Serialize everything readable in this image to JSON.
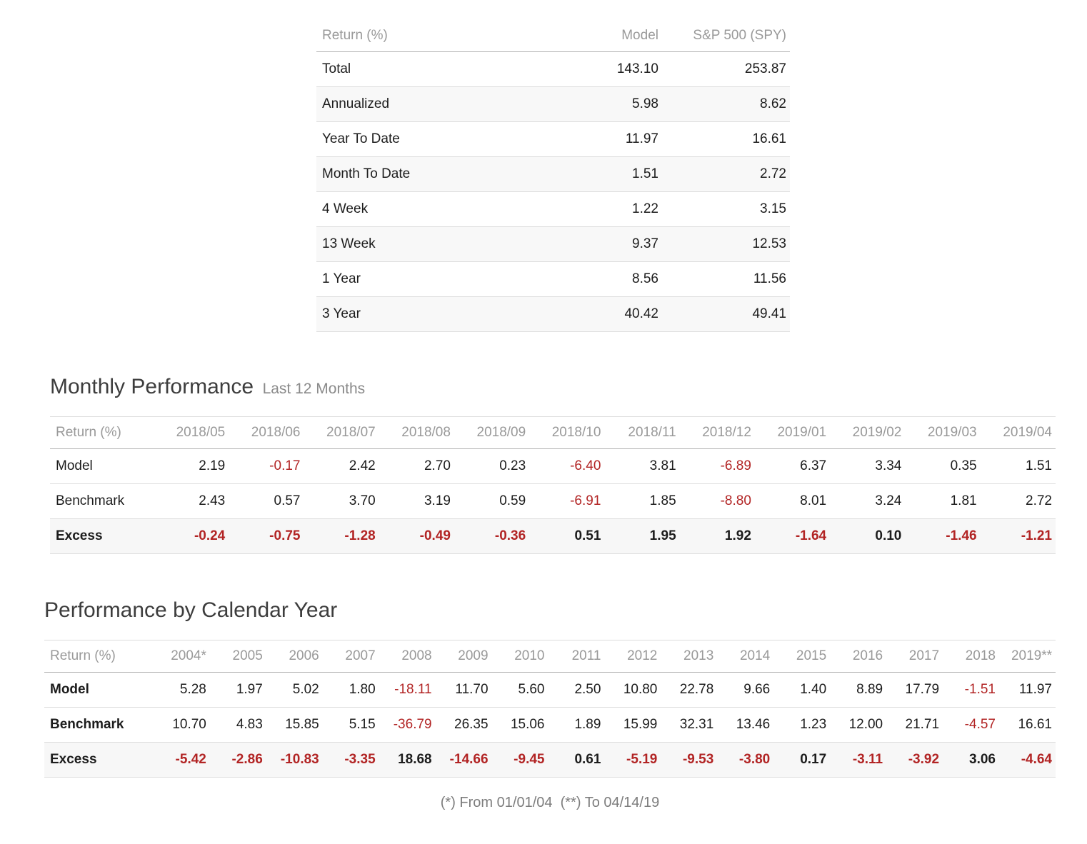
{
  "chart_data": [
    {
      "type": "table",
      "name": "summary_returns",
      "header_label": "Return (%)",
      "columns": [
        "Model",
        "S&P 500 (SPY)"
      ],
      "rows": [
        {
          "label": "Total",
          "values": [
            "143.10",
            "253.87"
          ]
        },
        {
          "label": "Annualized",
          "values": [
            "5.98",
            "8.62"
          ]
        },
        {
          "label": "Year To Date",
          "values": [
            "11.97",
            "16.61"
          ]
        },
        {
          "label": "Month To Date",
          "values": [
            "1.51",
            "2.72"
          ]
        },
        {
          "label": "4 Week",
          "values": [
            "1.22",
            "3.15"
          ]
        },
        {
          "label": "13 Week",
          "values": [
            "9.37",
            "12.53"
          ]
        },
        {
          "label": "1 Year",
          "values": [
            "8.56",
            "11.56"
          ]
        },
        {
          "label": "3 Year",
          "values": [
            "40.42",
            "49.41"
          ]
        }
      ]
    },
    {
      "type": "table",
      "name": "monthly_performance",
      "title": "Monthly Performance",
      "subtitle": "Last 12 Months",
      "header_label": "Return (%)",
      "columns": [
        "2018/05",
        "2018/06",
        "2018/07",
        "2018/08",
        "2018/09",
        "2018/10",
        "2018/11",
        "2018/12",
        "2019/01",
        "2019/02",
        "2019/03",
        "2019/04"
      ],
      "rows": [
        {
          "label": "Model",
          "values": [
            "2.19",
            "-0.17",
            "2.42",
            "2.70",
            "0.23",
            "-6.40",
            "3.81",
            "-6.89",
            "6.37",
            "3.34",
            "0.35",
            "1.51"
          ]
        },
        {
          "label": "Benchmark",
          "values": [
            "2.43",
            "0.57",
            "3.70",
            "3.19",
            "0.59",
            "-6.91",
            "1.85",
            "-8.80",
            "8.01",
            "3.24",
            "1.81",
            "2.72"
          ]
        },
        {
          "label": "Excess",
          "values": [
            "-0.24",
            "-0.75",
            "-1.28",
            "-0.49",
            "-0.36",
            "0.51",
            "1.95",
            "1.92",
            "-1.64",
            "0.10",
            "-1.46",
            "-1.21"
          ],
          "emphasis": true
        }
      ]
    },
    {
      "type": "table",
      "name": "calendar_year_performance",
      "title": "Performance by Calendar Year",
      "header_label": "Return (%)",
      "columns": [
        "2004*",
        "2005",
        "2006",
        "2007",
        "2008",
        "2009",
        "2010",
        "2011",
        "2012",
        "2013",
        "2014",
        "2015",
        "2016",
        "2017",
        "2018",
        "2019**"
      ],
      "rows": [
        {
          "label": "Model",
          "label_bold": true,
          "values": [
            "5.28",
            "1.97",
            "5.02",
            "1.80",
            "-18.11",
            "11.70",
            "5.60",
            "2.50",
            "10.80",
            "22.78",
            "9.66",
            "1.40",
            "8.89",
            "17.79",
            "-1.51",
            "11.97"
          ]
        },
        {
          "label": "Benchmark",
          "label_bold": true,
          "values": [
            "10.70",
            "4.83",
            "15.85",
            "5.15",
            "-36.79",
            "26.35",
            "15.06",
            "1.89",
            "15.99",
            "32.31",
            "13.46",
            "1.23",
            "12.00",
            "21.71",
            "-4.57",
            "16.61"
          ]
        },
        {
          "label": "Excess",
          "values": [
            "-5.42",
            "-2.86",
            "-10.83",
            "-3.35",
            "18.68",
            "-14.66",
            "-9.45",
            "0.61",
            "-5.19",
            "-9.53",
            "-3.80",
            "0.17",
            "-3.11",
            "-3.92",
            "3.06",
            "-4.64"
          ],
          "emphasis": true
        }
      ]
    }
  ],
  "footnote": "(*) From 01/01/04  (**) To 04/14/19",
  "colors": {
    "negative_value": "#b22424",
    "header_text": "#999999",
    "body_text": "#1c1c1c",
    "title_text": "#3d3d3d",
    "subtitle_text": "#8a8a8a",
    "footnote_text": "#7d7d7d",
    "stripe_background": "#f8f8f8",
    "emphasis_row_background": "#f7f7f7",
    "header_border": "#b2b2b2",
    "row_border": "#dddddd"
  }
}
